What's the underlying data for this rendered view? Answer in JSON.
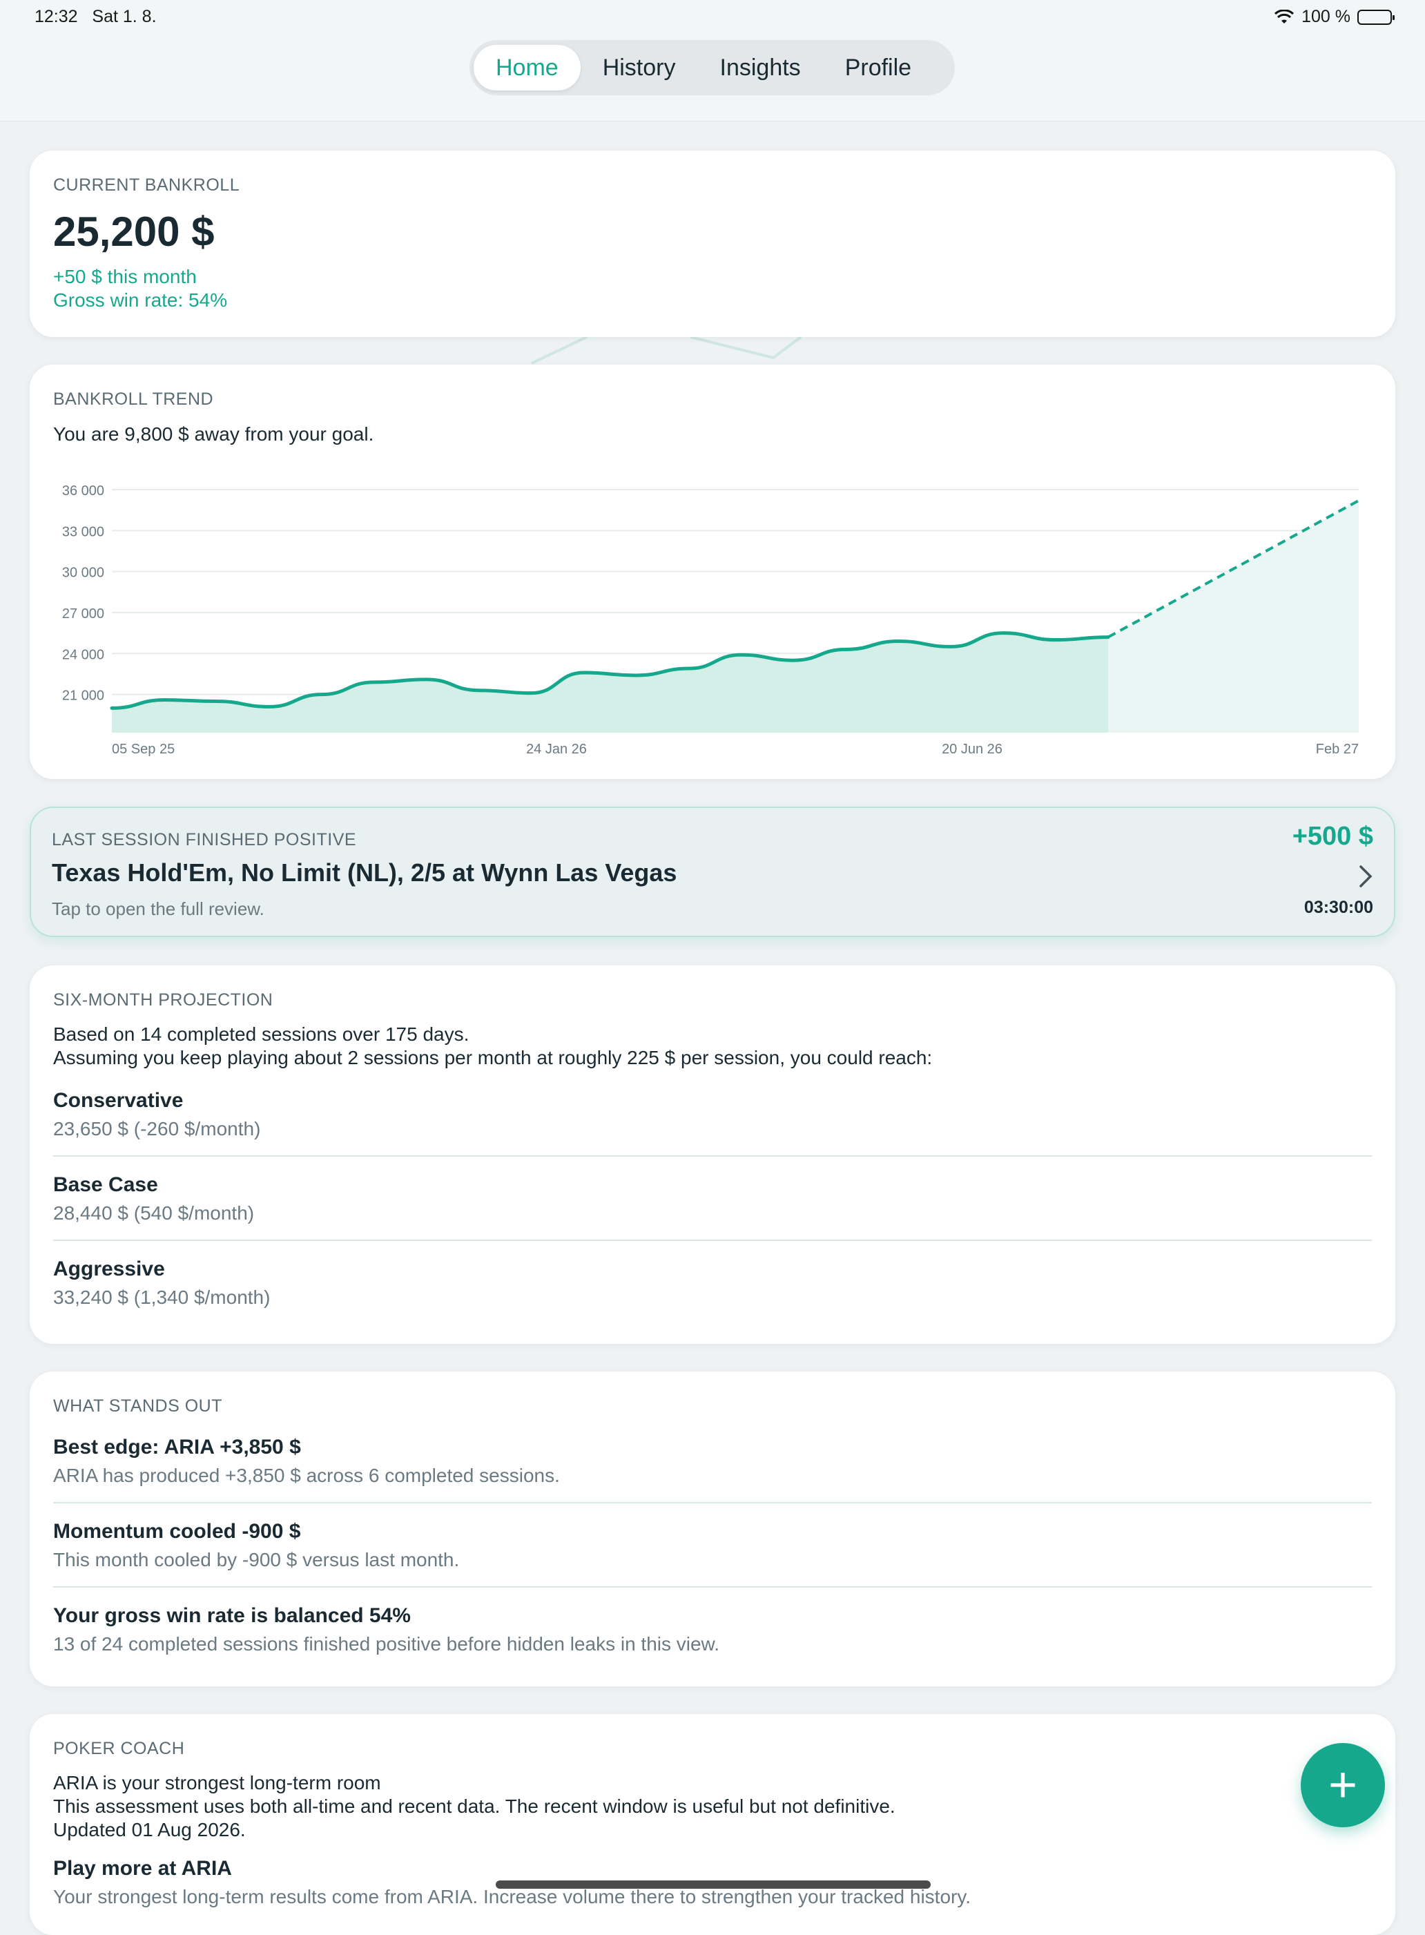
{
  "status_bar": {
    "time": "12:32",
    "date": "Sat 1. 8.",
    "battery": "100 %",
    "wifi_icon": "wifi-icon",
    "battery_icon": "battery-icon"
  },
  "nav": {
    "tabs": [
      "Home",
      "History",
      "Insights",
      "Profile"
    ],
    "active": "Home"
  },
  "accent_color": "#16a88d",
  "bankroll": {
    "label": "CURRENT BANKROLL",
    "amount": "25,200 $",
    "month_change": "+50 $ this month",
    "win_rate": "Gross win rate: 54%"
  },
  "trend": {
    "label": "BANKROLL TREND",
    "subtitle": "You are 9,800 $ away from your goal."
  },
  "chart_data": {
    "type": "area",
    "title": "BANKROLL TREND",
    "y_ticks": [
      "36 000",
      "33 000",
      "30 000",
      "27 000",
      "24 000",
      "21 000"
    ],
    "x_ticks": [
      "05 Sep 25",
      "24 Jan 26",
      "20 Jun 26",
      "Feb 27"
    ],
    "ylim": [
      18200,
      36000
    ],
    "grid": true,
    "series": [
      {
        "values": [
          20000,
          20600,
          20500,
          20100,
          21000,
          21900,
          22100,
          21300,
          21100,
          22600,
          22400,
          22900,
          23900,
          23500,
          24300,
          24900,
          24500,
          25500,
          25000,
          25200
        ]
      }
    ],
    "projection": {
      "from": 25200,
      "to": 35200,
      "style": "dashed"
    }
  },
  "last_session": {
    "label": "LAST SESSION FINISHED POSITIVE",
    "title": "Texas Hold'Em, No Limit (NL), 2/5 at Wynn Las Vegas",
    "hint": "Tap to open the full review.",
    "amount": "+500 $",
    "duration": "03:30:00"
  },
  "projection": {
    "label": "SIX-MONTH PROJECTION",
    "line1": "Based on 14 completed sessions over 175 days.",
    "line2": "Assuming you keep playing about 2 sessions per month at roughly 225 $ per session, you could reach:",
    "items": [
      {
        "title": "Conservative",
        "detail": "23,650 $ (-260 $/month)"
      },
      {
        "title": "Base Case",
        "detail": "28,440 $ (540 $/month)"
      },
      {
        "title": "Aggressive",
        "detail": "33,240 $ (1,340 $/month)"
      }
    ]
  },
  "insights": {
    "label": "WHAT STANDS OUT",
    "items": [
      {
        "title": "Best edge: ARIA +3,850 $",
        "detail": "ARIA has produced +3,850 $ across 6 completed sessions."
      },
      {
        "title": "Momentum cooled -900 $",
        "detail": "This month cooled by -900 $ versus last month."
      },
      {
        "title": "Your gross win rate is balanced 54%",
        "detail": "13 of 24 completed sessions finished positive before hidden leaks in this view."
      }
    ]
  },
  "coach": {
    "label": "POKER COACH",
    "line1": "ARIA is your strongest long-term room",
    "line2": "This assessment uses both all-time and recent data. The recent window is useful but not definitive.",
    "line3": "Updated 01 Aug 2026.",
    "tip_title": "Play more at ARIA",
    "tip_detail": "Your strongest long-term results come from ARIA. Increase volume there to strengthen your tracked history."
  },
  "fab": {
    "label": "+",
    "icon": "plus-icon"
  }
}
